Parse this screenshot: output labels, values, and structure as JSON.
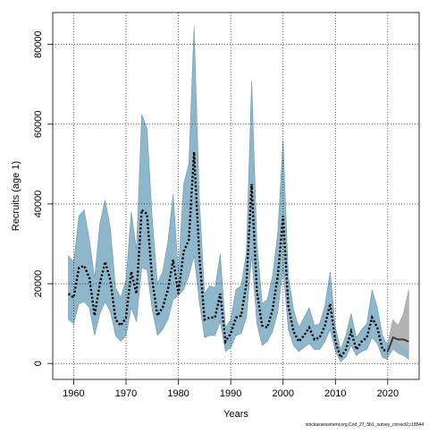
{
  "chart_data": {
    "type": "line",
    "title": "",
    "xlabel": "Years",
    "ylabel": "Recruits (age 1)",
    "xlim": [
      1956,
      2026
    ],
    "ylim": [
      -4000,
      88000
    ],
    "xticks": [
      1960,
      1970,
      1980,
      1990,
      2000,
      2010,
      2020
    ],
    "yticks": [
      0,
      20000,
      40000,
      60000,
      80000
    ],
    "grid": true,
    "legend": "none",
    "colors": {
      "assessment_band": "#8fb7cb",
      "assessment_band_edge": "#6a98b0",
      "forecast_band": "#a6a6a6",
      "forecast_assessment_overlap": "#8fb7cb",
      "estimate_line": "#000000",
      "forecast_line": "#3a3a3a",
      "grid": "#000000"
    },
    "x": [
      1959,
      1960,
      1961,
      1962,
      1963,
      1964,
      1965,
      1966,
      1967,
      1968,
      1969,
      1970,
      1971,
      1972,
      1973,
      1974,
      1975,
      1976,
      1977,
      1978,
      1979,
      1980,
      1981,
      1982,
      1983,
      1984,
      1985,
      1986,
      1987,
      1988,
      1989,
      1990,
      1991,
      1992,
      1993,
      1994,
      1995,
      1996,
      1997,
      1998,
      1999,
      2000,
      2001,
      2002,
      2003,
      2004,
      2005,
      2006,
      2007,
      2008,
      2009,
      2010,
      2011,
      2012,
      2013,
      2014,
      2015,
      2016,
      2017,
      2018,
      2019,
      2020
    ],
    "upper": [
      27000,
      25500,
      37000,
      38500,
      31000,
      21500,
      35000,
      41000,
      34000,
      19000,
      16500,
      21000,
      38000,
      28500,
      62500,
      59000,
      36500,
      20000,
      23000,
      30500,
      42500,
      23000,
      45000,
      50000,
      84500,
      41500,
      17500,
      19500,
      19000,
      27500,
      9000,
      11000,
      18500,
      19500,
      28000,
      71000,
      30500,
      15000,
      16000,
      22000,
      33000,
      56000,
      22000,
      13500,
      9000,
      11500,
      14000,
      9500,
      10000,
      14500,
      23000,
      9000,
      3500,
      7000,
      12500,
      6500,
      8500,
      10000,
      18500,
      14000,
      7000,
      4500
    ],
    "estimate": [
      17500,
      16500,
      24000,
      24500,
      21500,
      12000,
      20000,
      25500,
      21000,
      11000,
      9500,
      11500,
      23000,
      17500,
      38500,
      37500,
      21000,
      12000,
      14000,
      18500,
      26000,
      17500,
      28000,
      31000,
      53000,
      27000,
      11000,
      11500,
      11500,
      17500,
      5500,
      7500,
      11500,
      12000,
      20000,
      45000,
      18000,
      9500,
      9000,
      13500,
      22000,
      37000,
      14500,
      8000,
      5500,
      7000,
      9000,
      6000,
      6500,
      9500,
      15000,
      5500,
      1500,
      3500,
      8000,
      3500,
      5500,
      6500,
      11500,
      9000,
      3500,
      3000
    ],
    "lower": [
      11000,
      10000,
      15000,
      15500,
      14000,
      7000,
      12500,
      15500,
      13000,
      7000,
      5500,
      7000,
      14000,
      10500,
      24000,
      23500,
      13500,
      7000,
      8500,
      11000,
      16000,
      17000,
      18500,
      22000,
      27000,
      15500,
      6500,
      7000,
      7000,
      10500,
      3000,
      4000,
      7000,
      7500,
      11500,
      27000,
      10000,
      4500,
      5500,
      8000,
      13000,
      24000,
      8500,
      4500,
      3000,
      4000,
      5000,
      3500,
      3500,
      5500,
      8500,
      3000,
      500,
      1500,
      4500,
      2000,
      3000,
      3500,
      6500,
      5000,
      1500,
      1000
    ],
    "forecast": {
      "x": [
        2020,
        2021,
        2022,
        2023,
        2024
      ],
      "estimate": [
        3000,
        6500,
        6000,
        6000,
        5500
      ],
      "upper": [
        5000,
        11000,
        9500,
        12500,
        18500
      ],
      "lower": [
        1500,
        3500,
        2500,
        2000,
        1000
      ]
    }
  },
  "footnote": "stockassessment.org,Cod_27_5b1_survey_correct2,r18544"
}
